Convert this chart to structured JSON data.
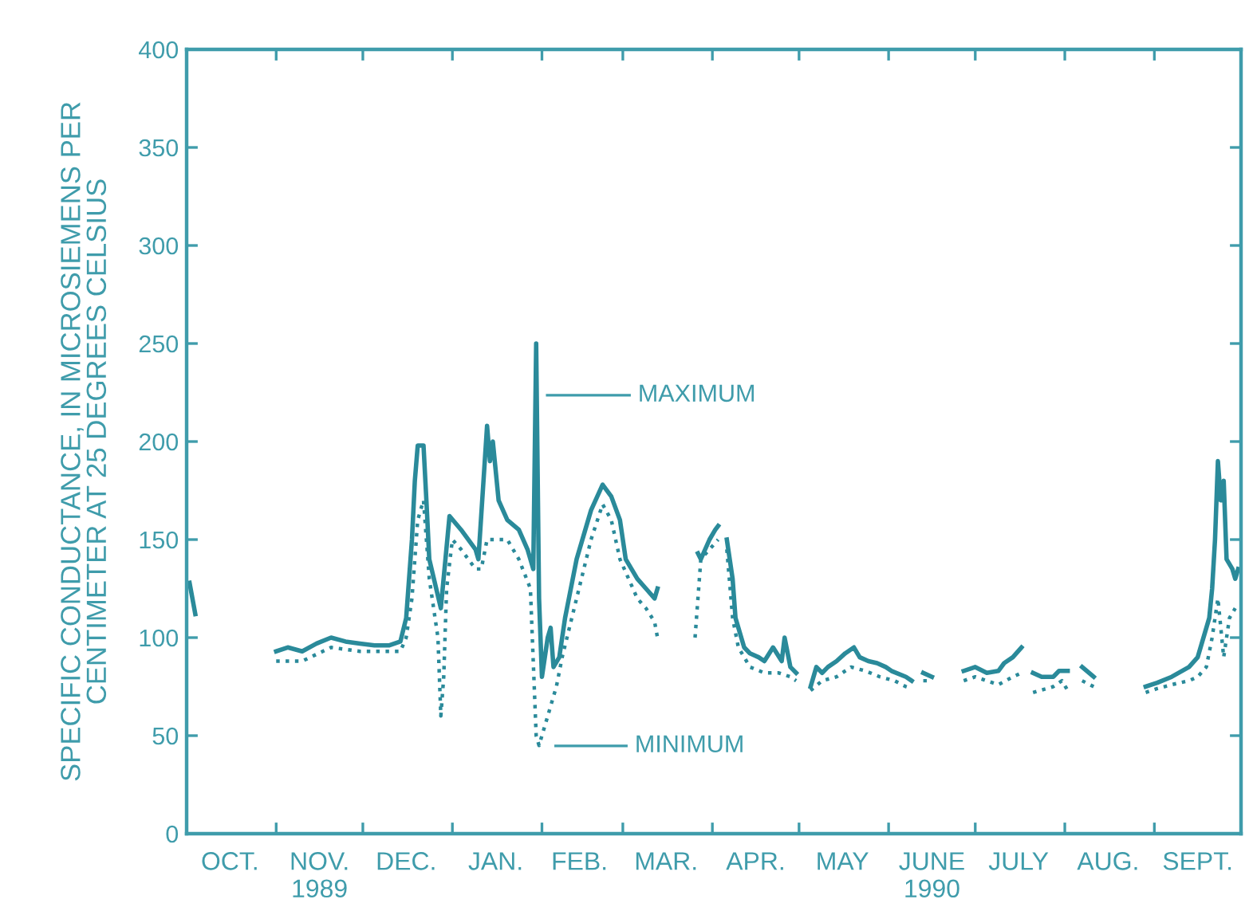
{
  "chart_data": {
    "type": "line",
    "ylabel": "SPECIFIC CONDUCTANCE, IN MICROSIEMENS PER\nCENTIMETER AT 25 DEGREES CELSIUS",
    "xlim": [
      "1989-10-01",
      "1990-10-01"
    ],
    "ylim": [
      0,
      400
    ],
    "yticks": [
      0,
      50,
      100,
      150,
      200,
      250,
      300,
      350,
      400
    ],
    "xticks": [
      {
        "value": "1989-11-01",
        "label": null
      },
      {
        "value": "1989-12-01",
        "label": null
      },
      {
        "value": "1990-01-01",
        "label": null
      },
      {
        "value": "1990-02-01",
        "label": null
      },
      {
        "value": "1990-03-01",
        "label": null
      },
      {
        "value": "1990-04-01",
        "label": null
      },
      {
        "value": "1990-05-01",
        "label": null
      },
      {
        "value": "1990-06-01",
        "label": null
      },
      {
        "value": "1990-07-01",
        "label": null
      },
      {
        "value": "1990-08-01",
        "label": null
      },
      {
        "value": "1990-09-01",
        "label": null
      },
      {
        "value": "1989-10-16",
        "label": "OCT."
      },
      {
        "value": "1989-11-16",
        "label": "NOV.\n1989"
      },
      {
        "value": "1989-12-16",
        "label": "DEC."
      },
      {
        "value": "1990-01-16",
        "label": "JAN."
      },
      {
        "value": "1990-02-14",
        "label": "FEB."
      },
      {
        "value": "1990-03-16",
        "label": "MAR."
      },
      {
        "value": "1990-04-16",
        "label": "APR."
      },
      {
        "value": "1990-05-16",
        "label": "MAY"
      },
      {
        "value": "1990-06-16",
        "label": "JUNE\n1990"
      },
      {
        "value": "1990-07-16",
        "label": "JULY"
      },
      {
        "value": "1990-08-16",
        "label": "AUG."
      },
      {
        "value": "1990-09-16",
        "label": "SEPT."
      }
    ],
    "grid": false,
    "legend": false,
    "marker": "none",
    "series": [
      {
        "color": "#2a8a9a",
        "line_style": "solid",
        "x": [
          "1989-10-02",
          "1989-10-04",
          "1989-10-05",
          "1989-11-01",
          "1989-11-05",
          "1989-11-10",
          "1989-11-15",
          "1989-11-20",
          "1989-11-25",
          "1989-11-30",
          "1989-12-05",
          "1989-12-10",
          "1989-12-14",
          "1989-12-16",
          "1989-12-18",
          "1989-12-19",
          "1989-12-20",
          "1989-12-22",
          "1989-12-23",
          "1989-12-24",
          "1989-12-28",
          "1989-12-31",
          "1990-01-04",
          "1990-01-09",
          "1990-01-10",
          "1990-01-13",
          "1990-01-14",
          "1990-01-15",
          "1990-01-17",
          "1990-01-20",
          "1990-01-24",
          "1990-01-27",
          "1990-01-29",
          "1990-01-30",
          "1990-01-31",
          "1990-02-01",
          "1990-02-03",
          "1990-02-04",
          "1990-02-05",
          "1990-02-07",
          "1990-02-09",
          "1990-02-13",
          "1990-02-18",
          "1990-02-22",
          "1990-02-25",
          "1990-02-28",
          "1990-03-02",
          "1990-03-06",
          "1990-03-09",
          "1990-03-12",
          "1990-03-13",
          "1990-03-20",
          "1990-03-27",
          "1990-03-28",
          "1990-03-31",
          "1990-04-02",
          "1990-04-03",
          "1990-04-04",
          "1990-04-06",
          "1990-04-08",
          "1990-04-09",
          "1990-04-12",
          "1990-04-14",
          "1990-04-17",
          "1990-04-19",
          "1990-04-22",
          "1990-04-25",
          "1990-04-26",
          "1990-04-28",
          "1990-04-30",
          "1990-05-03",
          "1990-05-05",
          "1990-05-07",
          "1990-05-09",
          "1990-05-11",
          "1990-05-14",
          "1990-05-17",
          "1990-05-20",
          "1990-05-22",
          "1990-05-25",
          "1990-05-28",
          "1990-05-31",
          "1990-06-02",
          "1990-06-07",
          "1990-06-09",
          "1990-06-12",
          "1990-06-13",
          "1990-06-16",
          "1990-06-20",
          "1990-06-27",
          "1990-07-01",
          "1990-07-05",
          "1990-07-09",
          "1990-07-11",
          "1990-07-14",
          "1990-07-17",
          "1990-07-19",
          "1990-07-21",
          "1990-07-24",
          "1990-07-28",
          "1990-07-30",
          "1990-08-02",
          "1990-08-04",
          "1990-08-07",
          "1990-08-11",
          "1990-08-17",
          "1990-08-29",
          "1990-09-02",
          "1990-09-07",
          "1990-09-13",
          "1990-09-16",
          "1990-09-20",
          "1990-09-21",
          "1990-09-22",
          "1990-09-23",
          "1990-09-24",
          "1990-09-25",
          "1990-09-26",
          "1990-09-28",
          "1990-09-29",
          "1990-09-30"
        ],
        "values": [
          128,
          112,
          null,
          93,
          95,
          93,
          97,
          100,
          98,
          97,
          96,
          96,
          98,
          110,
          150,
          180,
          198,
          198,
          170,
          140,
          115,
          162,
          155,
          145,
          140,
          208,
          190,
          200,
          170,
          160,
          155,
          145,
          135,
          250,
          120,
          80,
          100,
          105,
          85,
          90,
          110,
          140,
          165,
          178,
          172,
          160,
          140,
          130,
          125,
          120,
          125,
          null,
          143,
          140,
          150,
          155,
          157,
          null,
          150,
          130,
          110,
          95,
          92,
          90,
          88,
          95,
          88,
          100,
          85,
          82,
          null,
          75,
          85,
          82,
          85,
          88,
          92,
          95,
          90,
          88,
          87,
          85,
          83,
          80,
          78,
          null,
          82,
          80,
          null,
          83,
          85,
          82,
          83,
          87,
          90,
          95,
          null,
          82,
          80,
          80,
          83,
          83,
          null,
          85,
          80,
          null,
          75,
          77,
          80,
          85,
          90,
          110,
          125,
          150,
          190,
          170,
          180,
          140,
          135,
          130,
          135
        ]
      },
      {
        "color": "#2a8a9a",
        "line_style": "dotted",
        "x": [
          "1989-11-01",
          "1989-11-10",
          "1989-11-20",
          "1989-11-30",
          "1989-12-14",
          "1989-12-16",
          "1989-12-18",
          "1989-12-20",
          "1989-12-22",
          "1989-12-24",
          "1989-12-27",
          "1989-12-28",
          "1989-12-29",
          "1989-12-30",
          "1990-01-01",
          "1990-01-04",
          "1990-01-09",
          "1990-01-11",
          "1990-01-13",
          "1990-01-16",
          "1990-01-20",
          "1990-01-24",
          "1990-01-28",
          "1990-01-30",
          "1990-01-31",
          "1990-02-02",
          "1990-02-04",
          "1990-02-06",
          "1990-02-08",
          "1990-02-13",
          "1990-02-18",
          "1990-02-22",
          "1990-02-25",
          "1990-02-28",
          "1990-03-03",
          "1990-03-06",
          "1990-03-09",
          "1990-03-12",
          "1990-03-13",
          "1990-03-20",
          "1990-03-26",
          "1990-03-28",
          "1990-03-31",
          "1990-04-03",
          "1990-04-04",
          "1990-04-06",
          "1990-04-08",
          "1990-04-10",
          "1990-04-14",
          "1990-04-19",
          "1990-04-24",
          "1990-04-28",
          "1990-04-30",
          "1990-05-03",
          "1990-05-05",
          "1990-05-09",
          "1990-05-14",
          "1990-05-19",
          "1990-05-24",
          "1990-05-29",
          "1990-06-03",
          "1990-06-07",
          "1990-06-09",
          "1990-06-12",
          "1990-06-13",
          "1990-06-16",
          "1990-06-20",
          "1990-06-27",
          "1990-07-01",
          "1990-07-05",
          "1990-07-09",
          "1990-07-14",
          "1990-07-17",
          "1990-07-19",
          "1990-07-21",
          "1990-07-28",
          "1990-07-31",
          "1990-08-02",
          "1990-08-04",
          "1990-08-07",
          "1990-08-11",
          "1990-08-17",
          "1990-08-29",
          "1990-09-02",
          "1990-09-07",
          "1990-09-13",
          "1990-09-16",
          "1990-09-19",
          "1990-09-21",
          "1990-09-23",
          "1990-09-25",
          "1990-09-27",
          "1990-09-29"
        ],
        "values": [
          88,
          88,
          95,
          93,
          93,
          100,
          120,
          160,
          170,
          130,
          100,
          60,
          80,
          125,
          150,
          145,
          135,
          135,
          150,
          150,
          150,
          140,
          125,
          50,
          45,
          55,
          65,
          75,
          90,
          120,
          150,
          168,
          160,
          140,
          130,
          120,
          115,
          108,
          100,
          null,
          100,
          140,
          145,
          150,
          null,
          145,
          110,
          95,
          85,
          82,
          82,
          80,
          78,
          null,
          73,
          78,
          80,
          85,
          83,
          80,
          78,
          75,
          74,
          null,
          78,
          78,
          null,
          78,
          80,
          78,
          76,
          80,
          82,
          null,
          72,
          75,
          78,
          73,
          null,
          78,
          75,
          null,
          72,
          74,
          76,
          78,
          80,
          85,
          100,
          120,
          90,
          110,
          115
        ]
      }
    ],
    "annotations": [
      "MAXIMUM",
      "MINIMUM"
    ]
  }
}
